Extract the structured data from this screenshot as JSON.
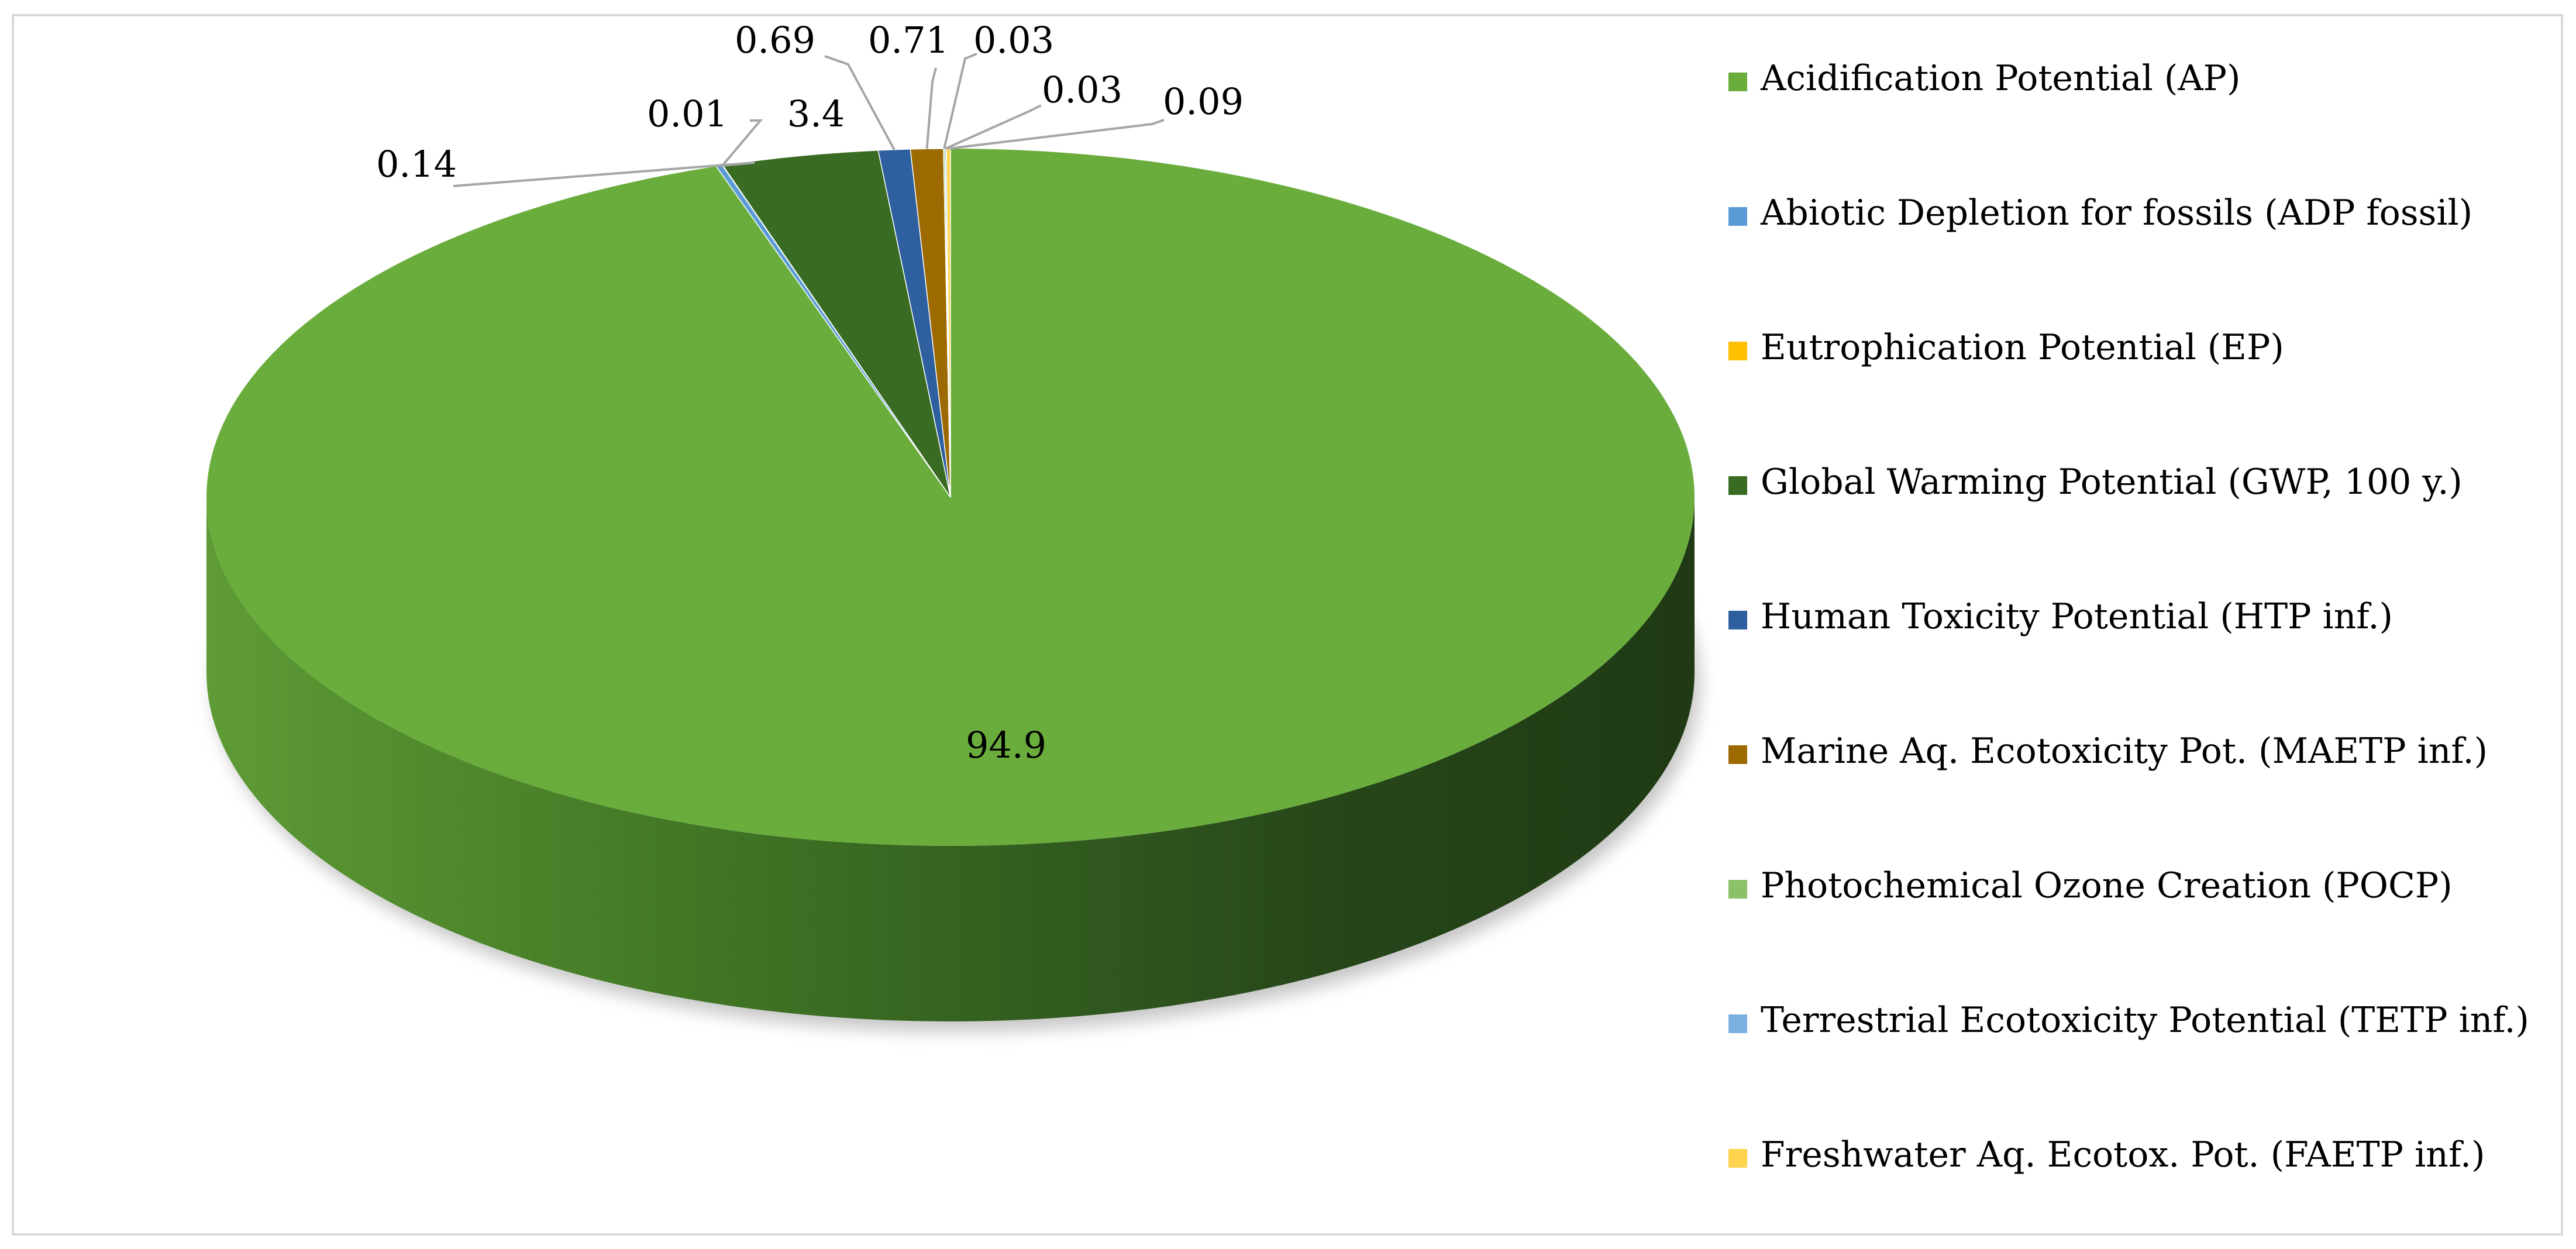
{
  "chart_data": {
    "type": "pie",
    "style": "3d",
    "legend_position": "right",
    "slices": [
      {
        "label": "Acidification Potential (AP)",
        "value": 94.9,
        "color": "#6aad3d",
        "data_label": "94.9"
      },
      {
        "label": "Abiotic Depletion for fossils (ADP fossil)",
        "value": 0.14,
        "color": "#5b9bd5",
        "data_label": "0.14"
      },
      {
        "label": "Eutrophication Potential (EP)",
        "value": 0.01,
        "color": "#ffc000",
        "data_label": "0.01"
      },
      {
        "label": "Global Warming Potential (GWP, 100 y.)",
        "value": 3.4,
        "color": "#3a6b22",
        "data_label": "3.4"
      },
      {
        "label": "Human Toxicity Potential (HTP inf.)",
        "value": 0.69,
        "color": "#2e5f9e",
        "data_label": "0.69"
      },
      {
        "label": "Marine Aq. Ecotoxicity Pot. (MAETP inf.)",
        "value": 0.71,
        "color": "#9c6a00",
        "data_label": "0.71"
      },
      {
        "label": "Photochemical Ozone Creation (POCP)",
        "value": 0.03,
        "color": "#8cc168",
        "data_label": "0.03"
      },
      {
        "label": "Terrestrial Ecotoxicity Potential (TETP inf.)",
        "value": 0.03,
        "color": "#7cb0e0",
        "data_label": "0.03"
      },
      {
        "label": "Freshwater Aq. Ecotox. Pot. (FAETP inf.)",
        "value": 0.09,
        "color": "#ffd34d",
        "data_label": "0.09"
      }
    ]
  }
}
